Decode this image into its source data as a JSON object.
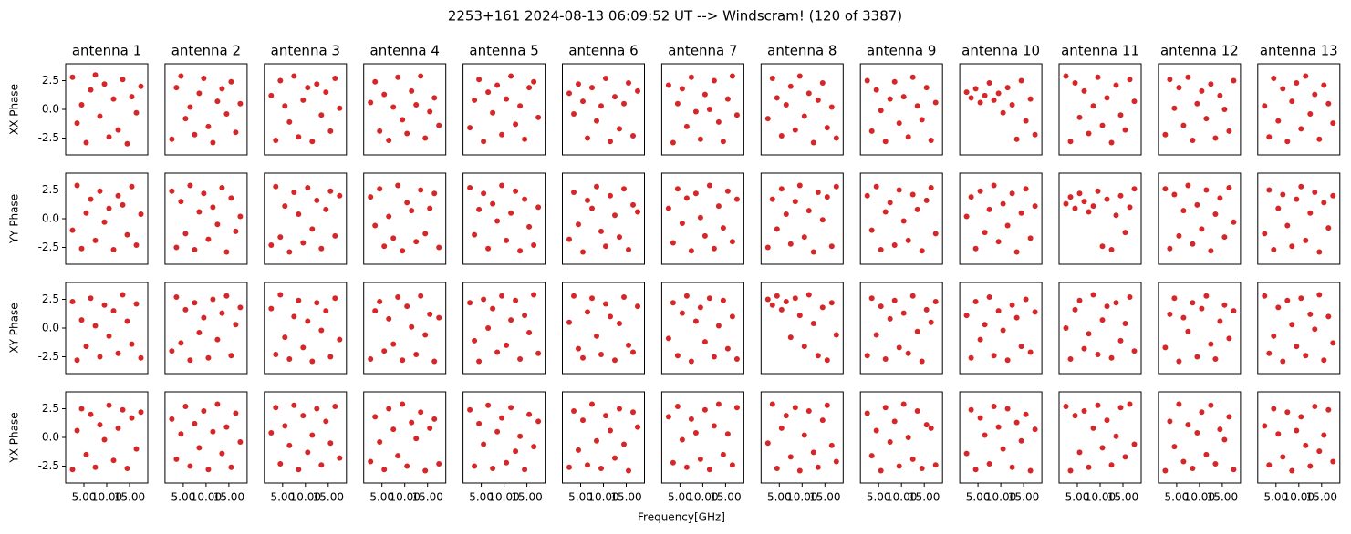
{
  "chart_data": {
    "type": "scatter",
    "title": "2253+161 2024-08-13 06:09:52 UT --> Windscram! (120 of 3387)",
    "xlabel": "Frequency[GHz]",
    "columns": [
      "antenna 1",
      "antenna 2",
      "antenna 3",
      "antenna 4",
      "antenna 5",
      "antenna 6",
      "antenna 7",
      "antenna 8",
      "antenna 9",
      "antenna 10",
      "antenna 11",
      "antenna 12",
      "antenna 13"
    ],
    "rows": [
      "XX Phase",
      "YY Phase",
      "XY Phase",
      "YX Phase"
    ],
    "color": "#d62728",
    "xlim": [
      1,
      19
    ],
    "ylim": [
      -3.97,
      3.97
    ],
    "xticks": [
      {
        "value": 5,
        "label": "5.00"
      },
      {
        "value": 10,
        "label": "10.00"
      },
      {
        "value": 15,
        "label": "15.00"
      }
    ],
    "yticks": [
      {
        "value": 2.5,
        "label": "2.5"
      },
      {
        "value": 0,
        "label": "0.0"
      },
      {
        "value": -2.5,
        "label": "-2.5"
      }
    ],
    "x": [
      2.5,
      3.5,
      4.5,
      5.5,
      6.5,
      7.5,
      8.5,
      9.5,
      10.5,
      11.5,
      12.5,
      13.5,
      14.5,
      15.5,
      16.5,
      17.5
    ],
    "panels": [
      [
        2.8,
        -1.2,
        0.4,
        -2.9,
        1.7,
        3.0,
        -0.6,
        2.2,
        -2.4,
        0.9,
        -1.8,
        2.6,
        -3.0,
        1.1,
        -0.3,
        2.0
      ],
      [
        -2.6,
        1.9,
        2.9,
        -0.8,
        0.2,
        -2.2,
        1.4,
        2.7,
        -1.5,
        -2.9,
        0.7,
        1.8,
        -0.4,
        2.4,
        -2.0,
        0.5
      ],
      [
        1.2,
        -2.7,
        2.5,
        0.3,
        -1.1,
        2.9,
        -2.4,
        0.8,
        1.9,
        -2.8,
        2.2,
        -0.5,
        1.5,
        -1.9,
        2.7,
        0.1
      ],
      [
        0.6,
        2.4,
        -1.9,
        1.3,
        -2.7,
        0.2,
        2.8,
        -0.9,
        -2.1,
        1.6,
        0.4,
        2.9,
        -2.5,
        -0.2,
        1.0,
        -1.4
      ],
      [
        -1.6,
        0.8,
        2.6,
        -2.8,
        1.5,
        -0.3,
        2.1,
        -2.2,
        0.9,
        2.9,
        -1.3,
        0.3,
        -2.6,
        1.9,
        2.4,
        -0.7
      ],
      [
        1.4,
        -0.4,
        2.2,
        0.7,
        -2.5,
        1.9,
        -1.0,
        0.3,
        2.7,
        -2.8,
        1.1,
        -1.7,
        0.5,
        2.3,
        -2.3,
        1.6
      ],
      [
        2.1,
        -2.9,
        0.5,
        1.8,
        -1.5,
        2.8,
        -0.2,
        -2.6,
        1.3,
        0.0,
        2.5,
        -1.1,
        -2.8,
        0.9,
        2.9,
        -0.5
      ],
      [
        -0.8,
        2.7,
        1.0,
        -2.3,
        0.4,
        2.0,
        -1.8,
        2.9,
        -0.6,
        1.4,
        -2.9,
        0.8,
        2.3,
        -1.6,
        0.2,
        -2.5
      ],
      [
        2.5,
        -1.9,
        1.7,
        -0.1,
        -2.8,
        0.9,
        2.4,
        -1.2,
        1.1,
        -2.4,
        2.8,
        0.3,
        -0.9,
        1.9,
        -2.7,
        0.6
      ],
      [
        1.5,
        1.0,
        1.8,
        0.6,
        1.2,
        2.3,
        0.8,
        1.4,
        -0.3,
        1.9,
        0.4,
        -2.6,
        2.5,
        -1.0,
        0.9,
        -2.2
      ],
      [
        2.9,
        -2.8,
        2.3,
        -0.7,
        1.6,
        -2.1,
        0.3,
        2.8,
        -1.4,
        1.0,
        -2.9,
        2.1,
        -0.5,
        -1.8,
        2.6,
        0.7
      ],
      [
        -2.2,
        2.6,
        0.1,
        1.9,
        -1.4,
        2.8,
        -2.7,
        0.5,
        1.6,
        -0.8,
        2.2,
        -2.5,
        1.2,
        0.0,
        -1.9,
        2.5
      ],
      [
        0.3,
        -2.4,
        2.7,
        -1.0,
        1.8,
        -2.8,
        0.7,
        2.3,
        -1.7,
        2.9,
        -0.4,
        1.3,
        -2.6,
        2.1,
        0.5,
        -1.2
      ],
      [
        -1.0,
        2.9,
        -2.6,
        0.5,
        1.7,
        -1.9,
        2.4,
        -0.3,
        0.9,
        -2.7,
        2.0,
        1.2,
        -1.4,
        2.8,
        -2.3,
        0.4
      ],
      [
        2.4,
        -2.5,
        1.5,
        -1.3,
        2.9,
        -2.7,
        0.6,
        2.2,
        -1.8,
        1.0,
        -0.5,
        2.7,
        -2.9,
        1.8,
        -1.1,
        0.2
      ],
      [
        -2.3,
        2.8,
        -1.6,
        1.1,
        -2.9,
        2.3,
        0.4,
        -2.1,
        2.7,
        -0.9,
        1.6,
        -2.6,
        0.8,
        2.4,
        -1.5,
        2.0
      ],
      [
        1.9,
        -0.6,
        2.6,
        -2.4,
        0.2,
        -1.7,
        2.9,
        -2.8,
        1.4,
        0.7,
        -2.0,
        2.5,
        -1.3,
        0.9,
        2.2,
        -2.5
      ],
      [
        2.7,
        -1.4,
        0.8,
        2.2,
        -2.6,
        1.3,
        -0.2,
        2.9,
        -1.9,
        0.5,
        2.4,
        -2.8,
        1.7,
        -0.7,
        -2.3,
        1.0
      ],
      [
        -1.8,
        2.3,
        -0.5,
        -2.9,
        1.6,
        0.9,
        2.8,
        -1.1,
        -2.4,
        2.0,
        0.3,
        -1.6,
        2.6,
        -2.7,
        1.2,
        0.6
      ],
      [
        0.9,
        -2.1,
        2.6,
        -0.4,
        1.8,
        -2.8,
        2.2,
        0.1,
        -1.5,
        2.9,
        -2.6,
        1.1,
        -0.8,
        2.4,
        -2.0,
        1.7
      ],
      [
        -2.5,
        1.7,
        -0.9,
        2.6,
        0.4,
        -2.2,
        1.5,
        2.9,
        -1.6,
        0.7,
        -2.9,
        2.3,
        -0.1,
        1.9,
        -2.4,
        2.8
      ],
      [
        2.0,
        -1.0,
        2.8,
        -2.7,
        0.6,
        1.4,
        -2.3,
        2.5,
        -0.2,
        -1.9,
        2.1,
        0.8,
        -2.8,
        1.6,
        2.7,
        -1.3
      ],
      [
        0.2,
        1.9,
        -2.6,
        2.4,
        -1.2,
        0.8,
        2.9,
        -2.0,
        1.3,
        -0.6,
        2.2,
        -2.9,
        0.5,
        2.6,
        -1.7,
        1.1
      ],
      [
        1.3,
        1.9,
        0.9,
        2.2,
        1.5,
        0.6,
        1.1,
        2.4,
        -2.4,
        1.7,
        -2.7,
        0.3,
        2.0,
        -1.2,
        1.0,
        2.6
      ],
      [
        2.6,
        -2.6,
        2.1,
        -1.5,
        0.7,
        2.9,
        -2.2,
        1.2,
        -0.9,
        2.5,
        -2.8,
        0.4,
        1.8,
        -1.6,
        2.7,
        -0.3
      ],
      [
        -1.3,
        2.5,
        -2.7,
        0.9,
        2.1,
        -0.6,
        -2.4,
        1.7,
        2.8,
        -1.9,
        0.5,
        2.3,
        -2.9,
        1.4,
        -0.8,
        2.0
      ],
      [
        2.3,
        -2.8,
        0.7,
        -1.6,
        2.6,
        0.2,
        -2.5,
        2.0,
        -0.7,
        1.5,
        -2.2,
        2.9,
        0.6,
        -1.4,
        2.1,
        -2.6
      ],
      [
        -2.0,
        2.7,
        -1.3,
        1.6,
        -2.8,
        2.2,
        -0.4,
        0.9,
        -2.6,
        2.5,
        -1.0,
        1.3,
        2.8,
        -2.4,
        0.3,
        1.8
      ],
      [
        1.7,
        -2.3,
        2.9,
        -0.8,
        -2.7,
        1.0,
        2.4,
        -1.7,
        0.6,
        -2.9,
        2.2,
        -0.2,
        1.5,
        -2.5,
        2.6,
        -1.0
      ],
      [
        -2.7,
        1.5,
        2.3,
        -2.0,
        0.8,
        -1.4,
        2.7,
        -2.8,
        1.9,
        0.1,
        -2.3,
        2.8,
        -0.6,
        1.2,
        -2.9,
        0.9
      ],
      [
        2.2,
        -1.1,
        -2.9,
        2.5,
        0.0,
        1.7,
        -2.1,
        2.8,
        -1.5,
        0.7,
        2.4,
        -2.7,
        1.1,
        -0.4,
        2.9,
        -2.2
      ],
      [
        0.5,
        2.8,
        -1.8,
        -2.6,
        1.4,
        2.6,
        -0.7,
        -2.3,
        2.1,
        1.0,
        -2.8,
        0.4,
        2.7,
        -1.5,
        -2.1,
        1.9
      ],
      [
        -0.9,
        2.2,
        -2.4,
        1.3,
        2.8,
        -2.9,
        0.6,
        1.8,
        -1.2,
        2.6,
        -2.5,
        0.2,
        2.4,
        -1.8,
        1.0,
        -2.7
      ],
      [
        2.5,
        2.0,
        2.8,
        1.6,
        2.3,
        -0.8,
        2.6,
        1.1,
        -1.6,
        2.9,
        0.4,
        -2.4,
        1.8,
        -2.8,
        2.2,
        -0.6
      ],
      [
        -2.4,
        2.6,
        -0.6,
        1.9,
        -2.7,
        0.8,
        2.4,
        -1.7,
        1.3,
        -2.2,
        2.8,
        -0.3,
        -2.9,
        1.6,
        0.5,
        2.3
      ],
      [
        1.1,
        -2.6,
        2.3,
        -1.0,
        0.3,
        2.7,
        -2.4,
        1.5,
        -0.2,
        -2.8,
        2.0,
        0.9,
        -1.6,
        2.5,
        -2.1,
        1.4
      ],
      [
        0.0,
        -2.7,
        1.6,
        2.4,
        -1.8,
        -0.5,
        2.9,
        -2.3,
        0.7,
        1.9,
        -2.6,
        2.2,
        -1.1,
        0.4,
        2.7,
        -2.0
      ],
      [
        -1.7,
        1.2,
        2.6,
        -2.9,
        0.9,
        -0.3,
        2.2,
        -2.5,
        1.7,
        2.8,
        -1.4,
        -2.7,
        0.6,
        2.0,
        -0.9,
        1.5
      ],
      [
        2.8,
        -2.2,
        -0.7,
        1.8,
        -2.9,
        2.4,
        0.3,
        -1.6,
        2.6,
        -2.4,
        1.2,
        -0.1,
        2.9,
        -2.8,
        1.0,
        -1.3
      ],
      [
        -2.8,
        0.6,
        2.5,
        -1.5,
        2.0,
        -2.6,
        1.1,
        -0.2,
        2.8,
        -2.0,
        0.8,
        2.4,
        -2.7,
        1.7,
        -1.0,
        2.2
      ],
      [
        1.6,
        -1.9,
        0.3,
        2.7,
        -2.5,
        1.2,
        -0.9,
        2.3,
        -2.8,
        0.5,
        2.9,
        -1.4,
        0.9,
        -2.6,
        2.1,
        -0.4
      ],
      [
        0.4,
        2.6,
        -2.3,
        1.0,
        -0.7,
        2.8,
        -2.8,
        1.9,
        -1.3,
        0.2,
        2.5,
        -2.4,
        1.4,
        -0.5,
        2.7,
        -1.8
      ],
      [
        -2.1,
        1.8,
        -0.4,
        -2.8,
        2.5,
        0.7,
        -1.6,
        2.9,
        -2.5,
        1.3,
        -0.1,
        2.2,
        -2.9,
        0.8,
        1.6,
        -2.3
      ],
      [
        2.4,
        -2.5,
        1.2,
        -0.6,
        2.8,
        -2.7,
        0.5,
        1.7,
        -2.2,
        2.6,
        -1.2,
        0.1,
        -2.8,
        2.0,
        -0.8,
        1.4
      ],
      [
        -2.6,
        2.3,
        -1.1,
        1.5,
        -2.4,
        2.9,
        -0.3,
        -2.7,
        1.9,
        0.6,
        -1.8,
        2.5,
        -0.6,
        -2.9,
        2.2,
        0.9
      ],
      [
        1.8,
        -2.2,
        2.7,
        -0.2,
        -2.6,
        1.6,
        0.4,
        -1.9,
        2.4,
        -2.8,
        1.0,
        2.9,
        -1.5,
        0.3,
        -2.4,
        2.6
      ],
      [
        -0.5,
        2.9,
        -2.7,
        0.8,
        1.9,
        -1.7,
        2.6,
        -2.9,
        0.2,
        2.3,
        -1.3,
        -2.6,
        1.5,
        2.8,
        -0.7,
        -2.1
      ],
      [
        2.1,
        -1.6,
        0.6,
        -2.9,
        2.6,
        -0.4,
        1.4,
        -2.5,
        2.9,
        0.0,
        -1.9,
        2.3,
        -2.7,
        1.1,
        0.8,
        -2.4
      ],
      [
        -1.4,
        2.4,
        -2.8,
        1.7,
        0.2,
        -2.3,
        2.7,
        0.9,
        -1.0,
        2.5,
        -2.6,
        1.3,
        -0.3,
        2.0,
        -2.9,
        0.7
      ],
      [
        2.7,
        -2.9,
        1.9,
        -1.3,
        2.3,
        -2.6,
        0.8,
        2.8,
        -0.9,
        1.5,
        -2.4,
        0.1,
        2.6,
        -1.7,
        2.9,
        -0.6
      ],
      [
        -2.9,
        1.4,
        -0.8,
        2.9,
        -2.1,
        1.1,
        -2.7,
        0.4,
        2.2,
        -1.5,
        2.8,
        -2.3,
        0.7,
        -0.2,
        1.8,
        -2.8
      ],
      [
        1.0,
        -2.4,
        2.5,
        0.3,
        -1.7,
        2.2,
        -2.9,
        0.6,
        1.8,
        -0.7,
        -2.5,
        2.7,
        -1.2,
        0.2,
        2.4,
        -2.1
      ]
    ]
  }
}
